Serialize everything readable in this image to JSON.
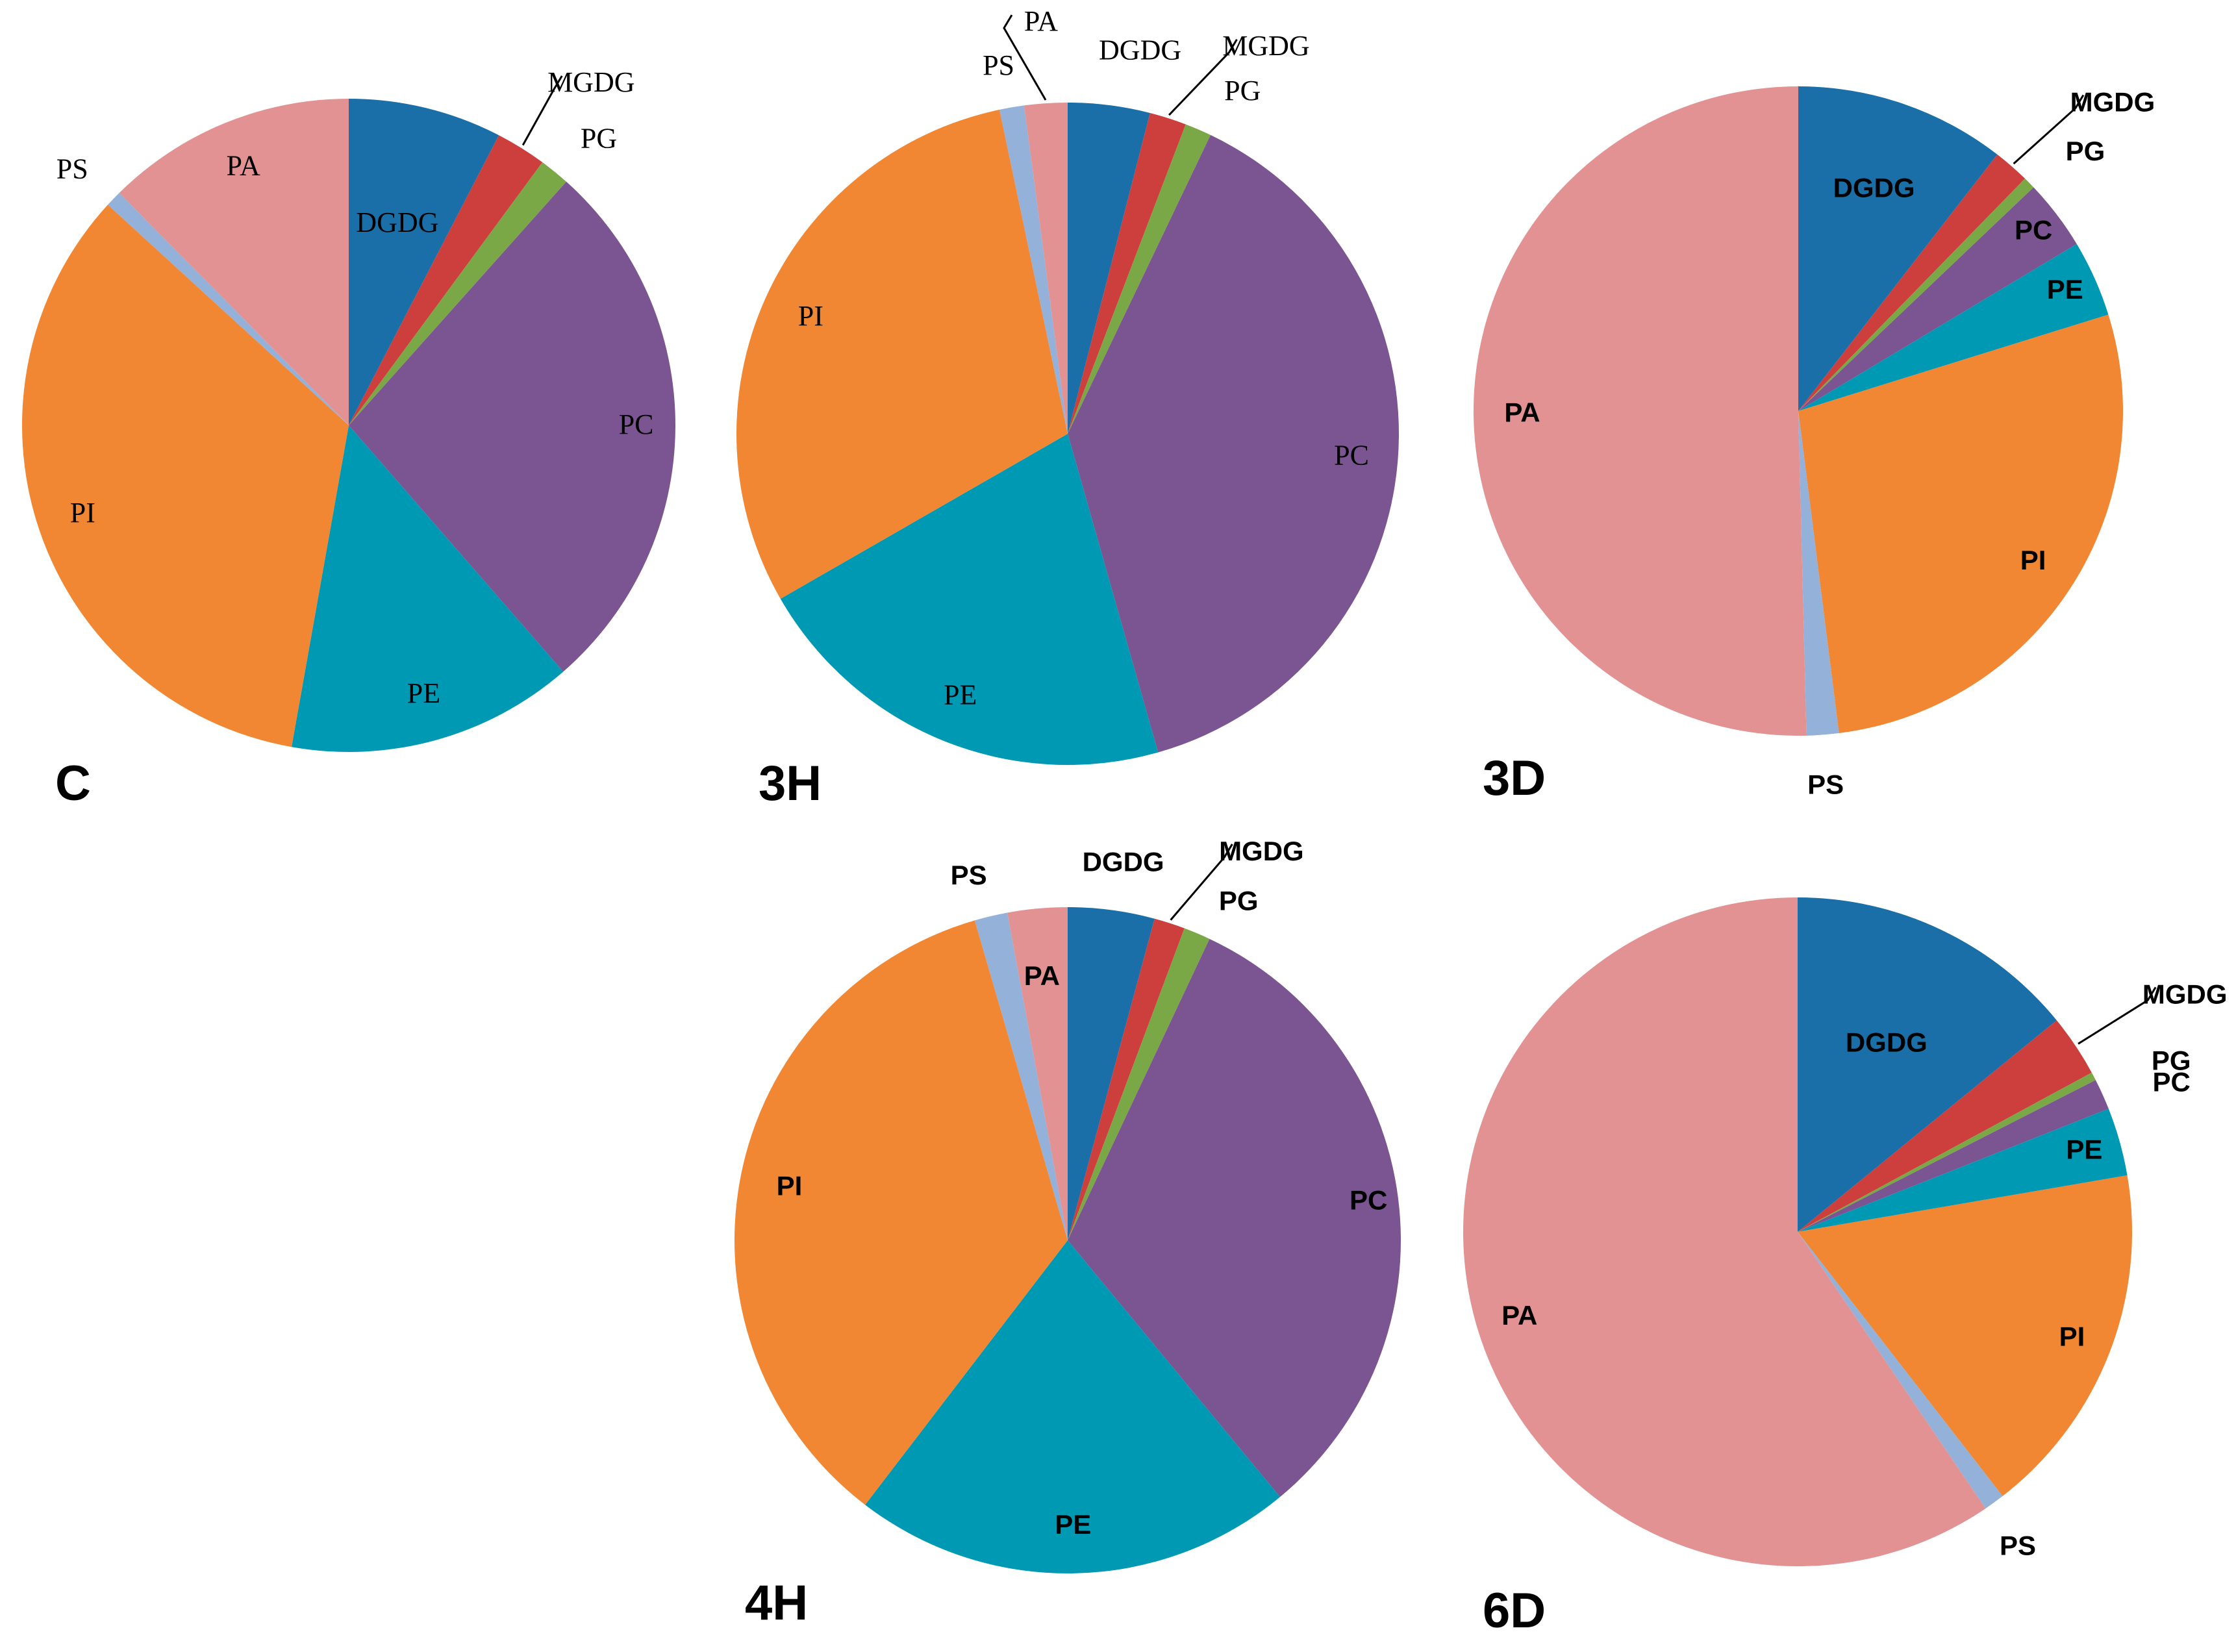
{
  "colors": {
    "DGDG": "#1B6FA8",
    "MGDG": "#CC3F3C",
    "PG": "#7AA847",
    "PC": "#7B5591",
    "PE": "#0099B4",
    "PI": "#F18633",
    "PS": "#93B1D9",
    "PA": "#E39293"
  },
  "chart_data": [
    {
      "type": "pie",
      "title": "C",
      "label_font": "serif",
      "slices": [
        {
          "name": "DGDG",
          "value": 7.6
        },
        {
          "name": "MGDG",
          "value": 2.5
        },
        {
          "name": "PG",
          "value": 1.5
        },
        {
          "name": "PC",
          "value": 27.0
        },
        {
          "name": "PE",
          "value": 14.2
        },
        {
          "name": "PI",
          "value": 34.0
        },
        {
          "name": "PS",
          "value": 0.8
        },
        {
          "name": "PA",
          "value": 12.4
        }
      ]
    },
    {
      "type": "pie",
      "title": "3H",
      "label_font": "serif",
      "slices": [
        {
          "name": "DGDG",
          "value": 4.0
        },
        {
          "name": "MGDG",
          "value": 1.8
        },
        {
          "name": "PG",
          "value": 1.3
        },
        {
          "name": "PC",
          "value": 38.5
        },
        {
          "name": "PE",
          "value": 21.1
        },
        {
          "name": "PI",
          "value": 30.0
        },
        {
          "name": "PS",
          "value": 1.2
        },
        {
          "name": "PA",
          "value": 2.1
        }
      ]
    },
    {
      "type": "pie",
      "title": "3D",
      "label_font": "sans",
      "slices": [
        {
          "name": "DGDG",
          "value": 10.5
        },
        {
          "name": "MGDG",
          "value": 1.8
        },
        {
          "name": "PG",
          "value": 0.6
        },
        {
          "name": "PC",
          "value": 3.5
        },
        {
          "name": "PE",
          "value": 3.8
        },
        {
          "name": "PI",
          "value": 27.8
        },
        {
          "name": "PS",
          "value": 1.6
        },
        {
          "name": "PA",
          "value": 50.4
        }
      ]
    },
    {
      "type": "pie",
      "title": "4H",
      "label_font": "sans",
      "slices": [
        {
          "name": "DGDG",
          "value": 4.2
        },
        {
          "name": "MGDG",
          "value": 1.5
        },
        {
          "name": "PG",
          "value": 1.3
        },
        {
          "name": "PC",
          "value": 32.0
        },
        {
          "name": "PE",
          "value": 21.4
        },
        {
          "name": "PI",
          "value": 35.1
        },
        {
          "name": "PS",
          "value": 1.6
        },
        {
          "name": "PA",
          "value": 2.9
        }
      ]
    },
    {
      "type": "pie",
      "title": "6D",
      "label_font": "sans",
      "slices": [
        {
          "name": "DGDG",
          "value": 14.1
        },
        {
          "name": "MGDG",
          "value": 3.0
        },
        {
          "name": "PG",
          "value": 0.4
        },
        {
          "name": "PC",
          "value": 1.5
        },
        {
          "name": "PE",
          "value": 3.3
        },
        {
          "name": "PI",
          "value": 17.2
        },
        {
          "name": "PS",
          "value": 1.0
        },
        {
          "name": "PA",
          "value": 59.5
        }
      ]
    }
  ]
}
